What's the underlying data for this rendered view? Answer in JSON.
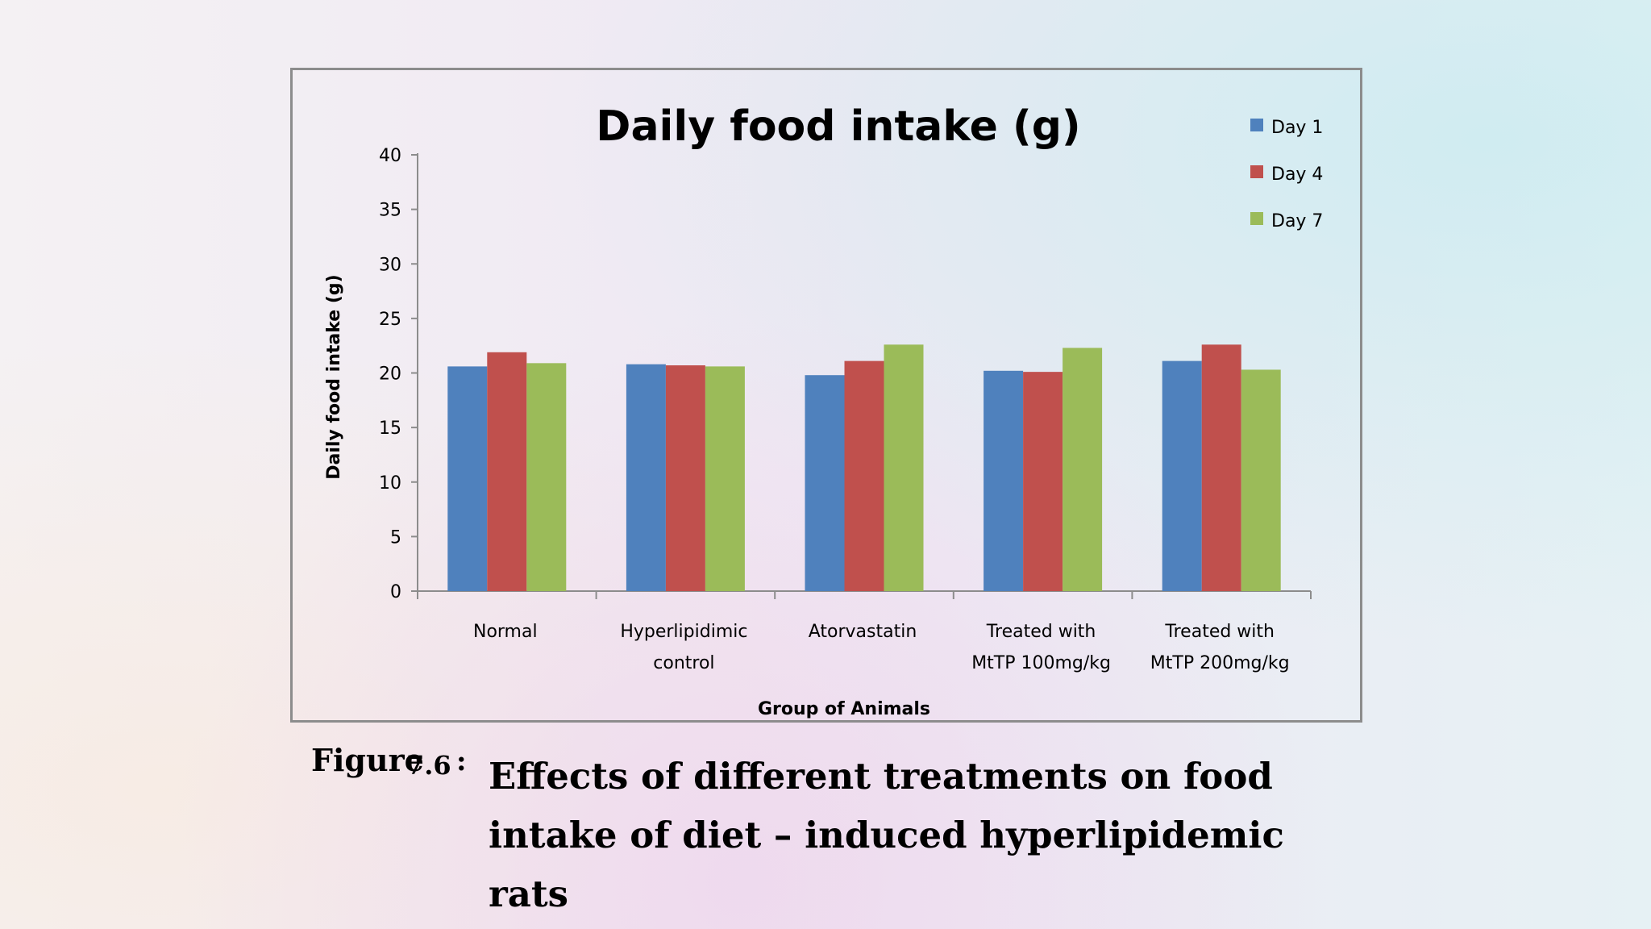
{
  "figure_caption": {
    "label": "Figure",
    "number": "7.6",
    "colon": ":",
    "text": "Effects of different treatments on food intake of diet – induced hyperlipidemic rats"
  },
  "chart_data": {
    "type": "bar",
    "title": "Daily food intake (g)",
    "xlabel": "Group of Animals",
    "ylabel": "Daily food intake (g)",
    "ylim": [
      0,
      40
    ],
    "yticks": [
      "0",
      "5",
      "10",
      "15",
      "20",
      "25",
      "30",
      "35",
      "40"
    ],
    "grid": false,
    "legend_position": "top-right",
    "categories": [
      [
        "Normal"
      ],
      [
        "Hyperlipidimic",
        "control"
      ],
      [
        "Atorvastatin"
      ],
      [
        "Treated with",
        "MtTP 100mg/kg"
      ],
      [
        "Treated with",
        "MtTP 200mg/kg"
      ]
    ],
    "series": [
      {
        "name": "Day 1",
        "color": "#4f81bd",
        "values": [
          20.6,
          20.8,
          19.8,
          20.2,
          21.1
        ]
      },
      {
        "name": "Day 4",
        "color": "#c0504d",
        "values": [
          21.9,
          20.7,
          21.1,
          20.1,
          22.6
        ]
      },
      {
        "name": "Day 7",
        "color": "#9bbb59",
        "values": [
          20.9,
          20.6,
          22.6,
          22.3,
          20.3
        ]
      }
    ]
  }
}
